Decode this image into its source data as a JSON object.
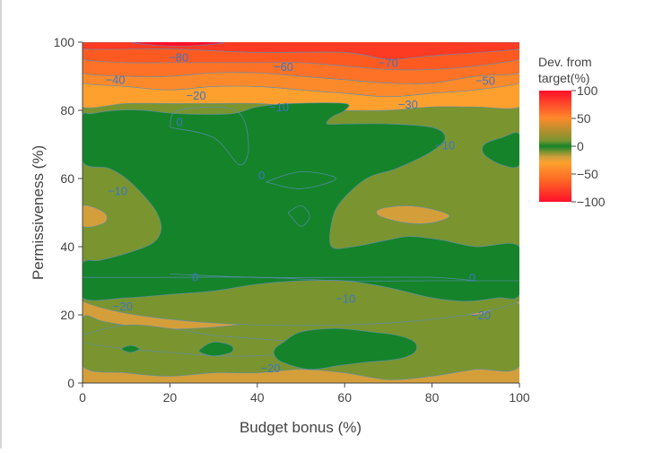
{
  "chart_data": {
    "type": "contour",
    "title": "",
    "xlabel": "Budget bonus (%)",
    "ylabel": "Permissiveness (%)",
    "xlim": [
      0,
      100
    ],
    "ylim": [
      0,
      100
    ],
    "x_ticks": [
      0,
      20,
      40,
      60,
      80,
      100
    ],
    "y_ticks": [
      0,
      20,
      40,
      60,
      80,
      100
    ],
    "z_label": "Dev. from target(%)",
    "z_range": [
      -100,
      100
    ],
    "colorbar_ticks": [
      100,
      50,
      0,
      -50,
      -100
    ],
    "colorbar_tick_labels": [
      "100",
      "50",
      "0",
      "−50",
      "−100"
    ],
    "colorscale": [
      {
        "value": -100,
        "color": "#ff0f2a"
      },
      {
        "value": -60,
        "color": "#fd6a24"
      },
      {
        "value": -30,
        "color": "#fda02e"
      },
      {
        "value": -20,
        "color": "#d49f3b"
      },
      {
        "value": -10,
        "color": "#7a9430"
      },
      {
        "value": 0,
        "color": "#15832a"
      },
      {
        "value": 10,
        "color": "#7a9430"
      },
      {
        "value": 50,
        "color": "#fd8a2a"
      },
      {
        "value": 100,
        "color": "#ff0f2a"
      }
    ],
    "regions": [
      {
        "level": -20,
        "color": "#d49f3b",
        "polygon": [
          [
            0,
            0
          ],
          [
            100,
            0
          ],
          [
            100,
            24
          ],
          [
            0,
            24
          ]
        ]
      },
      {
        "level": -10,
        "color": "#7a9430",
        "polygon": [
          [
            0,
            5
          ],
          [
            10,
            3
          ],
          [
            20,
            2
          ],
          [
            30,
            3
          ],
          [
            40,
            3
          ],
          [
            50,
            4
          ],
          [
            60,
            3
          ],
          [
            70,
            1
          ],
          [
            80,
            2
          ],
          [
            90,
            4
          ],
          [
            100,
            5
          ],
          [
            100,
            23
          ],
          [
            90,
            20
          ],
          [
            80,
            22
          ],
          [
            70,
            23
          ],
          [
            62,
            24
          ],
          [
            55,
            20
          ],
          [
            45,
            19
          ],
          [
            35,
            17
          ],
          [
            25,
            16
          ],
          [
            15,
            16
          ],
          [
            5,
            18
          ],
          [
            0,
            19
          ]
        ]
      },
      {
        "level": -10,
        "color": "#7a9430",
        "polygon": [
          [
            0,
            14
          ],
          [
            10,
            17
          ],
          [
            20,
            16
          ],
          [
            30,
            14
          ],
          [
            40,
            13
          ],
          [
            50,
            12
          ],
          [
            55,
            11
          ],
          [
            50,
            9
          ],
          [
            40,
            8
          ],
          [
            30,
            8
          ],
          [
            20,
            9
          ],
          [
            10,
            10
          ],
          [
            0,
            12
          ]
        ]
      },
      {
        "level": -10,
        "color": "#7a9430",
        "polygon": [
          [
            0,
            24
          ],
          [
            100,
            24
          ],
          [
            100,
            81
          ],
          [
            0,
            81
          ]
        ]
      },
      {
        "level": -30,
        "color": "#fda02e",
        "polygon": [
          [
            0,
            81
          ],
          [
            10,
            82
          ],
          [
            20,
            82
          ],
          [
            30,
            82
          ],
          [
            40,
            82
          ],
          [
            50,
            81
          ],
          [
            60,
            80
          ],
          [
            70,
            80
          ],
          [
            80,
            81
          ],
          [
            90,
            81
          ],
          [
            100,
            81
          ],
          [
            100,
            88
          ],
          [
            90,
            86
          ],
          [
            80,
            85
          ],
          [
            70,
            84
          ],
          [
            60,
            85
          ],
          [
            50,
            86
          ],
          [
            40,
            87
          ],
          [
            30,
            87
          ],
          [
            20,
            86
          ],
          [
            10,
            87
          ],
          [
            0,
            88
          ]
        ]
      },
      {
        "level": -40,
        "color": "#fd8a2a",
        "polygon": [
          [
            0,
            88
          ],
          [
            10,
            87
          ],
          [
            20,
            86
          ],
          [
            30,
            87
          ],
          [
            40,
            87
          ],
          [
            50,
            86
          ],
          [
            60,
            85
          ],
          [
            70,
            84
          ],
          [
            80,
            85
          ],
          [
            90,
            86
          ],
          [
            100,
            88
          ],
          [
            100,
            91
          ],
          [
            90,
            90
          ],
          [
            80,
            88
          ],
          [
            70,
            88
          ],
          [
            60,
            89
          ],
          [
            50,
            90
          ],
          [
            40,
            91
          ],
          [
            30,
            91
          ],
          [
            20,
            90
          ],
          [
            10,
            90
          ],
          [
            0,
            91
          ]
        ]
      },
      {
        "level": -50,
        "color": "#fd7226",
        "polygon": [
          [
            0,
            91
          ],
          [
            10,
            90
          ],
          [
            20,
            90
          ],
          [
            30,
            91
          ],
          [
            40,
            91
          ],
          [
            50,
            90
          ],
          [
            60,
            89
          ],
          [
            70,
            88
          ],
          [
            80,
            88
          ],
          [
            90,
            90
          ],
          [
            100,
            91
          ],
          [
            100,
            95
          ],
          [
            90,
            93
          ],
          [
            80,
            92
          ],
          [
            70,
            92
          ],
          [
            60,
            93
          ],
          [
            50,
            94
          ],
          [
            40,
            94
          ],
          [
            30,
            94
          ],
          [
            20,
            94
          ],
          [
            10,
            94
          ],
          [
            0,
            95
          ]
        ]
      },
      {
        "level": -60,
        "color": "#fd5a22",
        "polygon": [
          [
            0,
            95
          ],
          [
            10,
            94
          ],
          [
            20,
            94
          ],
          [
            30,
            94
          ],
          [
            40,
            94
          ],
          [
            50,
            94
          ],
          [
            60,
            93
          ],
          [
            70,
            92
          ],
          [
            80,
            92
          ],
          [
            90,
            93
          ],
          [
            100,
            95
          ],
          [
            100,
            98
          ],
          [
            80,
            96
          ],
          [
            70,
            95
          ],
          [
            60,
            97
          ],
          [
            40,
            97
          ],
          [
            20,
            98
          ],
          [
            0,
            98
          ]
        ]
      },
      {
        "level": -80,
        "color": "#fd3a22",
        "polygon": [
          [
            0,
            98
          ],
          [
            20,
            98
          ],
          [
            40,
            97
          ],
          [
            60,
            97
          ],
          [
            70,
            95
          ],
          [
            80,
            96
          ],
          [
            100,
            98
          ],
          [
            100,
            100
          ],
          [
            0,
            100
          ]
        ]
      },
      {
        "level": -90,
        "color": "#ff0f2a",
        "polygon": [
          [
            12,
            100
          ],
          [
            18,
            99
          ],
          [
            26,
            99
          ],
          [
            32,
            100
          ]
        ]
      },
      {
        "level": -20,
        "color": "#d49f3b",
        "polygon": [
          [
            0,
            52
          ],
          [
            5,
            50
          ],
          [
            5,
            47
          ],
          [
            0,
            46
          ]
        ]
      },
      {
        "level": -20,
        "color": "#d49f3b",
        "polygon": [
          [
            68,
            51
          ],
          [
            74,
            52
          ],
          [
            80,
            51
          ],
          [
            84,
            49
          ],
          [
            80,
            47
          ],
          [
            74,
            47
          ],
          [
            68,
            49
          ]
        ]
      },
      {
        "level": 0,
        "color": "#15832a",
        "polygon": [
          [
            0,
            25
          ],
          [
            10,
            25
          ],
          [
            20,
            26
          ],
          [
            30,
            27
          ],
          [
            40,
            29
          ],
          [
            50,
            30
          ],
          [
            60,
            30
          ],
          [
            70,
            28
          ],
          [
            80,
            25
          ],
          [
            88,
            24
          ],
          [
            95,
            25
          ],
          [
            100,
            26
          ],
          [
            100,
            40
          ],
          [
            90,
            40
          ],
          [
            82,
            42
          ],
          [
            75,
            43
          ],
          [
            70,
            42
          ],
          [
            62,
            40
          ],
          [
            57,
            40
          ],
          [
            57,
            47
          ],
          [
            59,
            53
          ],
          [
            65,
            60
          ],
          [
            72,
            63
          ],
          [
            80,
            68
          ],
          [
            83,
            72
          ],
          [
            80,
            75
          ],
          [
            70,
            76
          ],
          [
            60,
            76
          ],
          [
            56,
            76
          ],
          [
            57,
            78
          ],
          [
            60,
            80
          ],
          [
            60,
            82
          ],
          [
            48,
            82
          ],
          [
            40,
            81
          ],
          [
            34,
            79
          ],
          [
            22,
            79
          ],
          [
            14,
            80
          ],
          [
            8,
            80
          ],
          [
            2,
            79
          ],
          [
            0,
            78
          ],
          [
            0,
            65
          ],
          [
            6,
            63
          ],
          [
            10,
            60
          ],
          [
            14,
            55
          ],
          [
            17,
            50
          ],
          [
            18,
            45
          ],
          [
            16,
            41
          ],
          [
            10,
            38
          ],
          [
            4,
            36
          ],
          [
            0,
            35
          ]
        ]
      },
      {
        "level": 0,
        "color": "#15832a",
        "polygon": [
          [
            92,
            70
          ],
          [
            96,
            72
          ],
          [
            100,
            73
          ],
          [
            100,
            64
          ],
          [
            96,
            64
          ],
          [
            92,
            67
          ]
        ]
      },
      {
        "level": 0,
        "color": "#15832a",
        "polygon": [
          [
            9,
            10
          ],
          [
            11,
            11
          ],
          [
            13,
            10
          ],
          [
            11,
            9
          ]
        ]
      },
      {
        "level": 0,
        "color": "#15832a",
        "polygon": [
          [
            27,
            10
          ],
          [
            30,
            12
          ],
          [
            34,
            11
          ],
          [
            34,
            9
          ],
          [
            30,
            8
          ],
          [
            27,
            9
          ]
        ]
      },
      {
        "level": 0,
        "color": "#15832a",
        "polygon": [
          [
            44,
            10
          ],
          [
            46,
            12
          ],
          [
            50,
            15
          ],
          [
            58,
            16
          ],
          [
            66,
            15
          ],
          [
            72,
            14
          ],
          [
            76,
            12
          ],
          [
            76,
            9
          ],
          [
            72,
            7
          ],
          [
            64,
            6
          ],
          [
            58,
            5
          ],
          [
            52,
            4
          ],
          [
            46,
            6
          ],
          [
            44,
            8
          ]
        ]
      }
    ],
    "contour_lines": [
      [
        [
          0,
          31
        ],
        [
          20,
          31
        ],
        [
          40,
          31
        ],
        [
          60,
          30
        ],
        [
          80,
          30
        ],
        [
          100,
          30
        ]
      ],
      [
        [
          20,
          32
        ],
        [
          40,
          31
        ],
        [
          60,
          31
        ],
        [
          80,
          31
        ],
        [
          90,
          30
        ]
      ],
      [
        [
          42,
          59
        ],
        [
          50,
          62
        ],
        [
          58,
          60
        ],
        [
          50,
          57
        ],
        [
          42,
          59
        ]
      ],
      [
        [
          47,
          50
        ],
        [
          50,
          52
        ],
        [
          52,
          49
        ],
        [
          50,
          46
        ],
        [
          47,
          50
        ]
      ],
      [
        [
          20,
          75
        ],
        [
          22,
          80
        ],
        [
          35,
          80
        ],
        [
          38,
          70
        ],
        [
          36,
          64
        ],
        [
          30,
          72
        ],
        [
          20,
          75
        ]
      ]
    ],
    "contour_labels": [
      {
        "text": "−80",
        "x": 22,
        "y": 95.4
      },
      {
        "text": "−60",
        "x": 46,
        "y": 92.6
      },
      {
        "text": "−70",
        "x": 70,
        "y": 93.8
      },
      {
        "text": "−40",
        "x": 7.5,
        "y": 88.8
      },
      {
        "text": "−50",
        "x": 92.2,
        "y": 88.6
      },
      {
        "text": "−20",
        "x": 26,
        "y": 84.2
      },
      {
        "text": "−10",
        "x": 45,
        "y": 80.8
      },
      {
        "text": "−30",
        "x": 74.5,
        "y": 81.6
      },
      {
        "text": "0",
        "x": 22.2,
        "y": 76.4
      },
      {
        "text": "−10",
        "x": 83,
        "y": 69.6
      },
      {
        "text": "0",
        "x": 41,
        "y": 60.8
      },
      {
        "text": "−10",
        "x": 8,
        "y": 56.2
      },
      {
        "text": "0",
        "x": 25.8,
        "y": 30.9
      },
      {
        "text": "0",
        "x": 89.2,
        "y": 30.8
      },
      {
        "text": "−10",
        "x": 60.2,
        "y": 24.6
      },
      {
        "text": "−20",
        "x": 9.2,
        "y": 22.4
      },
      {
        "text": "−20",
        "x": 91.2,
        "y": 19.8
      },
      {
        "text": "−20",
        "x": 43,
        "y": 4.2
      }
    ]
  }
}
